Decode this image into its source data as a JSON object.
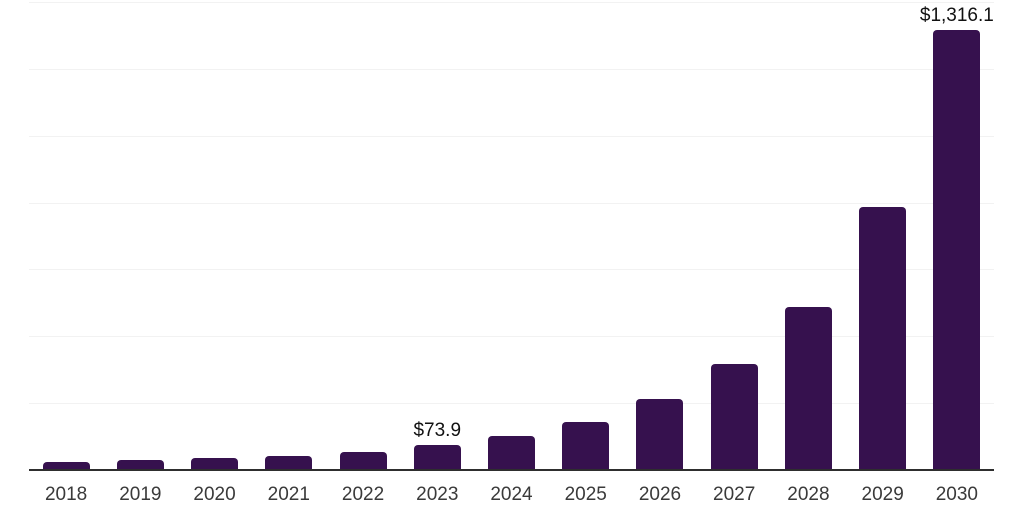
{
  "chart_data": {
    "type": "bar",
    "categories": [
      "2018",
      "2019",
      "2020",
      "2021",
      "2022",
      "2023",
      "2024",
      "2025",
      "2026",
      "2027",
      "2028",
      "2029",
      "2030"
    ],
    "values": [
      24,
      30,
      35,
      43,
      54,
      73.9,
      102,
      145,
      211,
      317,
      488,
      786,
      1316.1
    ],
    "bar_labels": [
      "",
      "",
      "",
      "",
      "",
      "$73.9",
      "",
      "",
      "",
      "",
      "",
      "",
      "$1,316.1"
    ],
    "title": "",
    "xlabel": "",
    "ylabel": "",
    "ylim": [
      0,
      1400
    ],
    "grid_step": 200,
    "grid": true,
    "legend": false,
    "y_axis_labels_shown": false,
    "colors": {
      "bar": "#36114E",
      "gridline": "#F2F2F2",
      "axis_line": "#2E2E2E",
      "tick_label": "#3A3A3A",
      "value_label": "#111111",
      "background": "#FFFFFF"
    }
  }
}
